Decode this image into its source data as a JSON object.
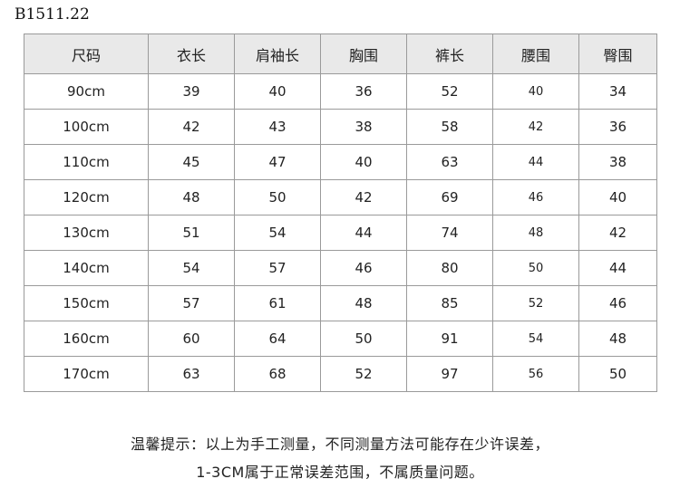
{
  "code": "B1511.22",
  "table": {
    "headers": [
      "尺码",
      "衣长",
      "肩袖长",
      "胸围",
      "裤长",
      "腰围",
      "臀围"
    ],
    "rows": [
      [
        "90cm",
        "39",
        "40",
        "36",
        "52",
        "40",
        "34"
      ],
      [
        "100cm",
        "42",
        "43",
        "38",
        "58",
        "42",
        "36"
      ],
      [
        "110cm",
        "45",
        "47",
        "40",
        "63",
        "44",
        "38"
      ],
      [
        "120cm",
        "48",
        "50",
        "42",
        "69",
        "46",
        "40"
      ],
      [
        "130cm",
        "51",
        "54",
        "44",
        "74",
        "48",
        "42"
      ],
      [
        "140cm",
        "54",
        "57",
        "46",
        "80",
        "50",
        "44"
      ],
      [
        "150cm",
        "57",
        "61",
        "48",
        "85",
        "52",
        "46"
      ],
      [
        "160cm",
        "60",
        "64",
        "50",
        "91",
        "54",
        "48"
      ],
      [
        "170cm",
        "63",
        "68",
        "52",
        "97",
        "56",
        "50"
      ]
    ]
  },
  "notes": {
    "line1": "温馨提示：以上为手工测量，不同测量方法可能存在少许误差，",
    "line2": "1-3CM属于正常误差范围，不属质量问题。"
  }
}
